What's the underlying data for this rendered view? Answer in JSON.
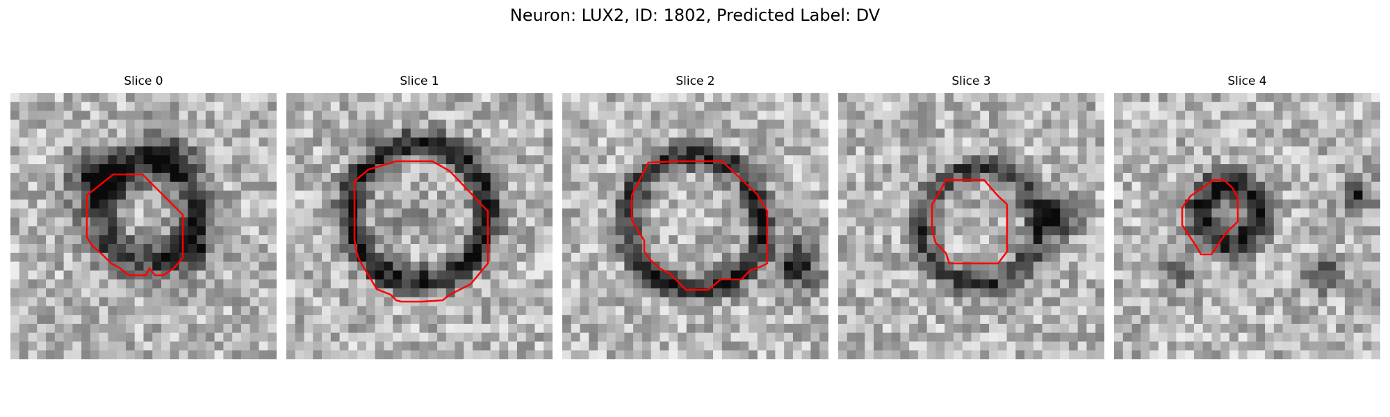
{
  "figure": {
    "title": "Neuron: LUX2, ID: 1802, Predicted Label: DV"
  },
  "panels": [
    {
      "title": "Slice 0"
    },
    {
      "title": "Slice 1"
    },
    {
      "title": "Slice 2"
    },
    {
      "title": "Slice 3"
    },
    {
      "title": "Slice 4"
    }
  ],
  "colors": {
    "contour": "#ff0000",
    "background": "#ffffff"
  }
}
